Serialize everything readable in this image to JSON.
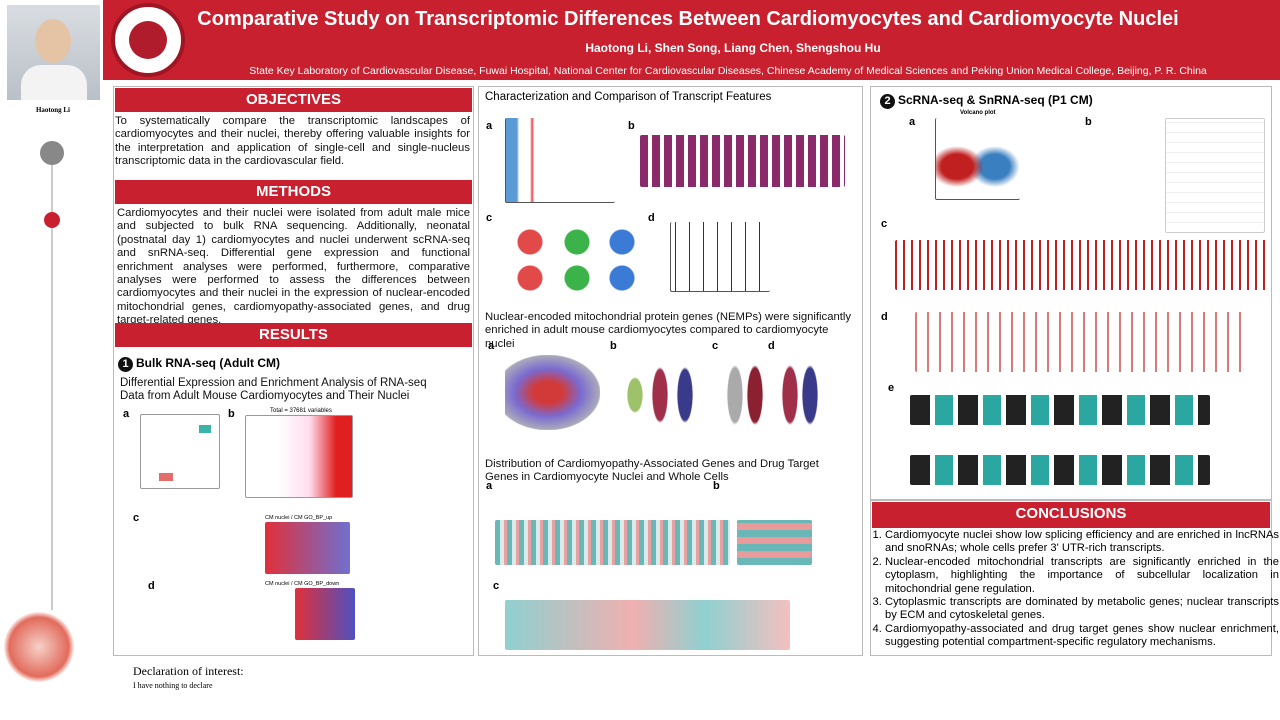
{
  "header": {
    "title": "Comparative Study on Transcriptomic Differences Between Cardiomyocytes and Cardiomyocyte Nuclei",
    "authors": "Haotong Li, Shen Song, Liang Chen, Shengshou Hu",
    "affiliation": "State Key Laboratory of Cardiovascular Disease, Fuwai Hospital, National Center for Cardiovascular Diseases, Chinese Academy of Medical Sciences and Peking Union Medical College, Beijing, P. R. China",
    "presenter": "Haotong Li"
  },
  "objectives": {
    "heading": "OBJECTIVES",
    "text": "To systematically compare the transcriptomic landscapes of cardiomyocytes and their nuclei, thereby offering valuable insights for the interpretation and application of single-cell and single-nucleus transcriptomic data in the cardiovascular field."
  },
  "methods": {
    "heading": "METHODS",
    "text": "Cardiomyocytes and their nuclei were isolated from adult male mice and subjected to bulk RNA sequencing. Additionally, neonatal (postnatal day 1) cardiomyocytes and nuclei underwent scRNA-seq and snRNA-seq. Differential gene expression and functional enrichment analyses were performed, furthermore, comparative analyses were performed to assess the differences between cardiomyocytes and their nuclei in the expression of nuclear-encoded mitochondrial genes, cardiomyopathy-associated genes, and drug target-related genes."
  },
  "results": {
    "heading": "RESULTS",
    "bulk": {
      "number": "1",
      "title": "Bulk RNA-seq (Adult CM)",
      "subtitle": "Differential Expression and Enrichment Analysis of RNA-seq Data from Adult Mouse Cardiomyocytes and Their Nuclei",
      "panels": [
        "a",
        "b",
        "c",
        "d"
      ],
      "volcano_note": "Total = 37681 variables",
      "c_title": "CM nuclei / CM GO_BP_up",
      "d_title": "CM nuclei / CM GO_BP_down"
    },
    "features": {
      "title": "Characterization and Comparison of Transcript Features",
      "panels": [
        "a",
        "b",
        "c",
        "d"
      ],
      "nemp_text": "Nuclear-encoded mitochondrial protein genes (NEMPs) were significantly enriched in adult mouse cardiomyocytes compared to cardiomyocyte nuclei",
      "nemp_panels": [
        "a",
        "b",
        "c",
        "d"
      ],
      "dist_title": "Distribution of Cardiomyopathy-Associated Genes and Drug Target Genes in Cardiomyocyte Nuclei and Whole Cells",
      "dist_panels": [
        "a",
        "b",
        "c"
      ]
    },
    "sc": {
      "number": "2",
      "title": "ScRNA-seq & SnRNA-seq (P1 CM)",
      "panels": [
        "a",
        "b",
        "c",
        "d",
        "e"
      ],
      "volcano": "Volcano plot"
    }
  },
  "conclusions": {
    "heading": "CONCLUSIONS",
    "items": [
      "Cardiomyocyte nuclei show low splicing efficiency and are enriched in lncRNAs and snoRNAs; whole cells prefer 3' UTR-rich transcripts.",
      "Nuclear-encoded mitochondrial transcripts are significantly enriched in the cytoplasm, highlighting the importance of subcellular localization in mitochondrial gene regulation.",
      "Cytoplasmic transcripts are dominated by metabolic genes; nuclear transcripts by ECM and cytoskeletal genes.",
      "Cardiomyopathy-associated and drug target genes show nuclear enrichment, suggesting potential compartment-specific regulatory mechanisms."
    ]
  },
  "declaration": {
    "heading": "Declaration of interest:",
    "text": "I have nothing to declare"
  }
}
